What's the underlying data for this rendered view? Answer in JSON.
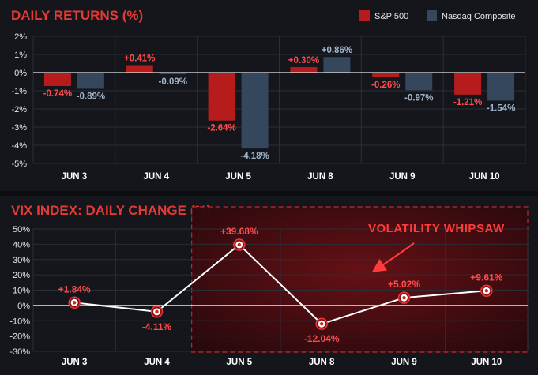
{
  "colors": {
    "sp500": "#b71c1c",
    "nasdaq": "#34475c",
    "accent": "#e53935",
    "line": "#ffffff",
    "highlight": "#5a0e12"
  },
  "chart_data": [
    {
      "type": "bar",
      "title": "DAILY RETURNS (%)",
      "categories": [
        "JUN 3",
        "JUN 4",
        "JUN 5",
        "JUN 8",
        "JUN 9",
        "JUN 10"
      ],
      "series": [
        {
          "name": "S&P 500",
          "values": [
            -0.74,
            0.41,
            -2.64,
            0.3,
            -0.26,
            -1.21
          ],
          "labels": [
            "-0.74%",
            "+0.41%",
            "-2.64%",
            "+0.30%",
            "-0.26%",
            "-1.21%"
          ]
        },
        {
          "name": "Nasdaq Composite",
          "values": [
            -0.89,
            -0.09,
            -4.18,
            0.86,
            -0.97,
            -1.54
          ],
          "labels": [
            "-0.89%",
            "-0.09%",
            "-4.18%",
            "+0.86%",
            "-0.97%",
            "-1.54%"
          ]
        }
      ],
      "ylim": [
        -5,
        2
      ],
      "yticks": [
        2,
        1,
        0,
        -1,
        -2,
        -3,
        -4,
        -5
      ],
      "ytick_labels": [
        "2%",
        "1%",
        "0%",
        "-1%",
        "-2%",
        "-3%",
        "-4%",
        "-5%"
      ],
      "grid": true,
      "legend": "top-right"
    },
    {
      "type": "line",
      "title": "VIX INDEX: DAILY CHANGE (%)",
      "categories": [
        "JUN 3",
        "JUN 4",
        "JUN 5",
        "JUN 8",
        "JUN 9",
        "JUN 10"
      ],
      "values": [
        1.84,
        -4.11,
        39.68,
        -12.04,
        5.02,
        9.61
      ],
      "labels": [
        "+1.84%",
        "-4.11%",
        "+39.68%",
        "-12.04%",
        "+5.02%",
        "+9.61%"
      ],
      "ylim": [
        -30,
        50
      ],
      "yticks": [
        50,
        40,
        30,
        20,
        10,
        0,
        -10,
        -20,
        -30
      ],
      "ytick_labels": [
        "50%",
        "40%",
        "30%",
        "20%",
        "10%",
        "0%",
        "-10%",
        "-20%",
        "-30%"
      ],
      "grid": true,
      "annotation": "VOLATILITY WHIPSAW",
      "highlight_range": [
        "JUN 5",
        "JUN 10"
      ]
    }
  ]
}
